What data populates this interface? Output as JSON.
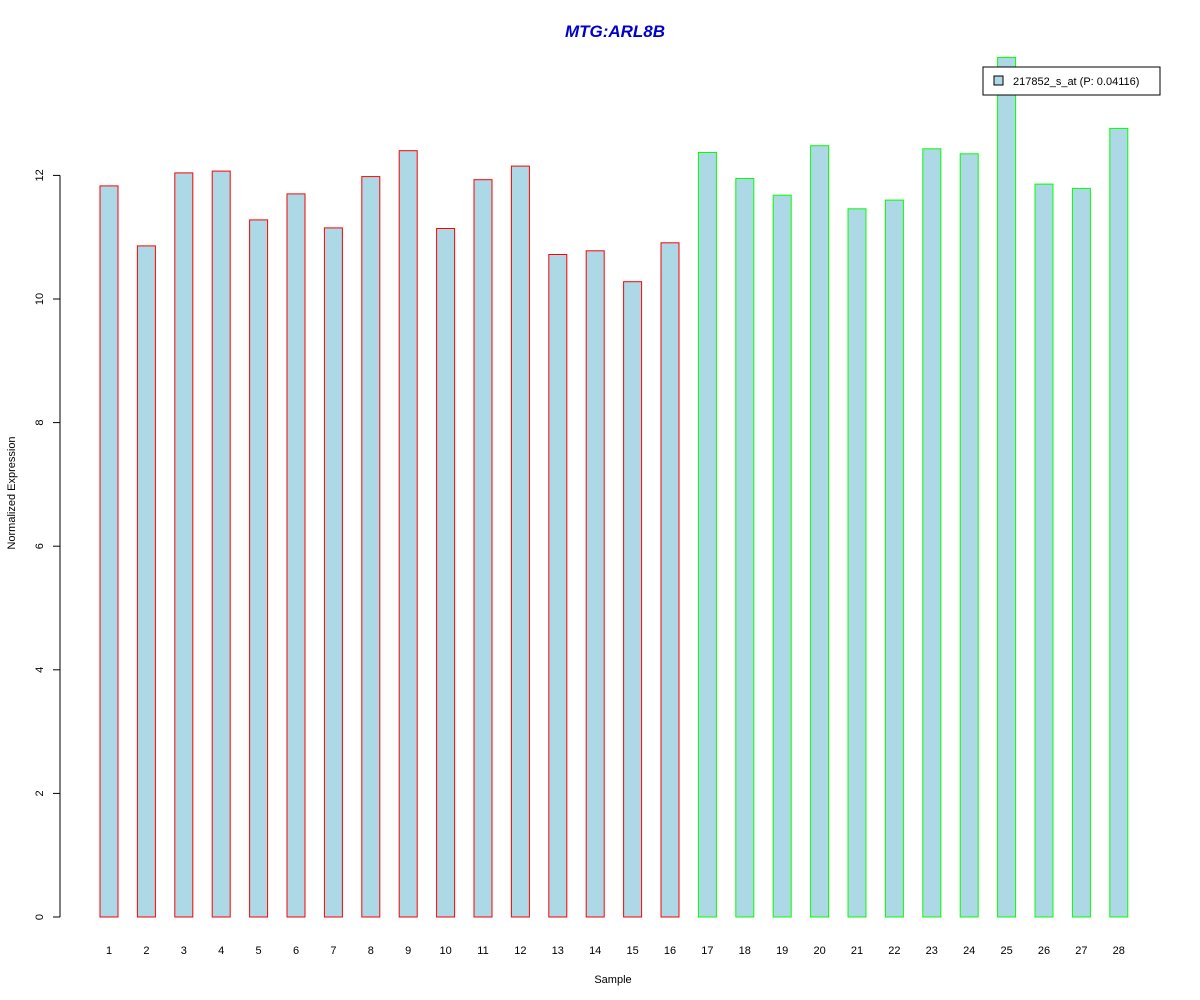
{
  "chart_data": {
    "type": "bar",
    "title": "MTG:ARL8B",
    "xlabel": "Sample",
    "ylabel": "Normalized Expression",
    "categories": [
      "1",
      "2",
      "3",
      "4",
      "5",
      "6",
      "7",
      "8",
      "9",
      "10",
      "11",
      "12",
      "13",
      "14",
      "15",
      "16",
      "17",
      "18",
      "19",
      "20",
      "21",
      "22",
      "23",
      "24",
      "25",
      "26",
      "27",
      "28"
    ],
    "series": [
      {
        "name": "217852_s_at (P: 0.04116)",
        "values": [
          11.83,
          10.86,
          12.04,
          12.07,
          11.28,
          11.7,
          11.15,
          11.98,
          12.4,
          11.14,
          11.93,
          12.15,
          10.72,
          10.78,
          10.28,
          10.91,
          12.37,
          11.95,
          11.68,
          12.48,
          11.46,
          11.6,
          12.43,
          12.35,
          13.91,
          11.86,
          11.79,
          12.76
        ]
      }
    ],
    "group_borders": [
      "#ff0000",
      "#ff0000",
      "#ff0000",
      "#ff0000",
      "#ff0000",
      "#ff0000",
      "#ff0000",
      "#ff0000",
      "#ff0000",
      "#ff0000",
      "#ff0000",
      "#ff0000",
      "#ff0000",
      "#ff0000",
      "#ff0000",
      "#ff0000",
      "#00ff00",
      "#00ff00",
      "#00ff00",
      "#00ff00",
      "#00ff00",
      "#00ff00",
      "#00ff00",
      "#00ff00",
      "#00ff00",
      "#00ff00",
      "#00ff00",
      "#00ff00"
    ],
    "y_ticks": [
      "0",
      "2",
      "4",
      "6",
      "8",
      "10",
      "12"
    ],
    "ylim": [
      0,
      13.91
    ],
    "grid": false,
    "legend_position": "top-right",
    "colors": {
      "bar_fill": "#add8e6",
      "title": "#0000cd",
      "axis": "#000000"
    }
  }
}
